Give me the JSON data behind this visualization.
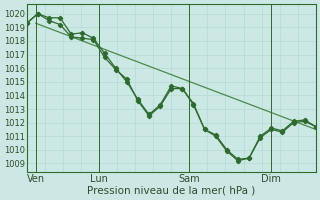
{
  "background_color": "#cce8e4",
  "grid_color": "#b8ddd8",
  "line_color_dark": "#2d6a2d",
  "line_color_light": "#4a8a4a",
  "ylabel_ticks": [
    1009,
    1010,
    1011,
    1012,
    1013,
    1014,
    1015,
    1016,
    1017,
    1018,
    1019,
    1020
  ],
  "ylim": [
    1008.4,
    1020.7
  ],
  "xlim_min": 0,
  "xlim_max": 16,
  "xlabel": "Pression niveau de la mer( hPa )",
  "xtick_labels": [
    "Ven",
    "Lun",
    "Sam",
    "Dim"
  ],
  "xtick_positions": [
    0.5,
    4.0,
    9.0,
    13.5
  ],
  "vline_positions": [
    0.5,
    4.0,
    9.0,
    13.5
  ],
  "series_main": [
    1019.3,
    1020.0,
    1019.7,
    1019.7,
    1018.5,
    1018.6,
    1018.2,
    1017.1,
    1016.0,
    1015.0,
    1013.7,
    1012.6,
    1013.3,
    1014.7,
    1014.5,
    1013.4,
    1011.5,
    1011.1,
    1010.0,
    1009.3,
    1009.4,
    1011.0,
    1011.6,
    1011.4,
    1012.1,
    1012.2,
    1011.7
  ],
  "series_alt": [
    1019.3,
    1020.0,
    1019.5,
    1019.2,
    1018.3,
    1018.2,
    1018.1,
    1016.8,
    1015.9,
    1015.2,
    1013.6,
    1012.5,
    1013.2,
    1014.5,
    1014.5,
    1013.3,
    1011.5,
    1011.0,
    1009.9,
    1009.2,
    1009.4,
    1010.9,
    1011.5,
    1011.3,
    1012.0,
    1012.1,
    1011.7
  ],
  "series_trend_x": [
    0.5,
    16.0
  ],
  "series_trend_y": [
    1019.3,
    1011.5
  ],
  "n_points": 27,
  "font_color": "#2d4d2d",
  "font_size_ytick": 6,
  "font_size_xtick": 7,
  "font_size_xlabel": 7.5
}
